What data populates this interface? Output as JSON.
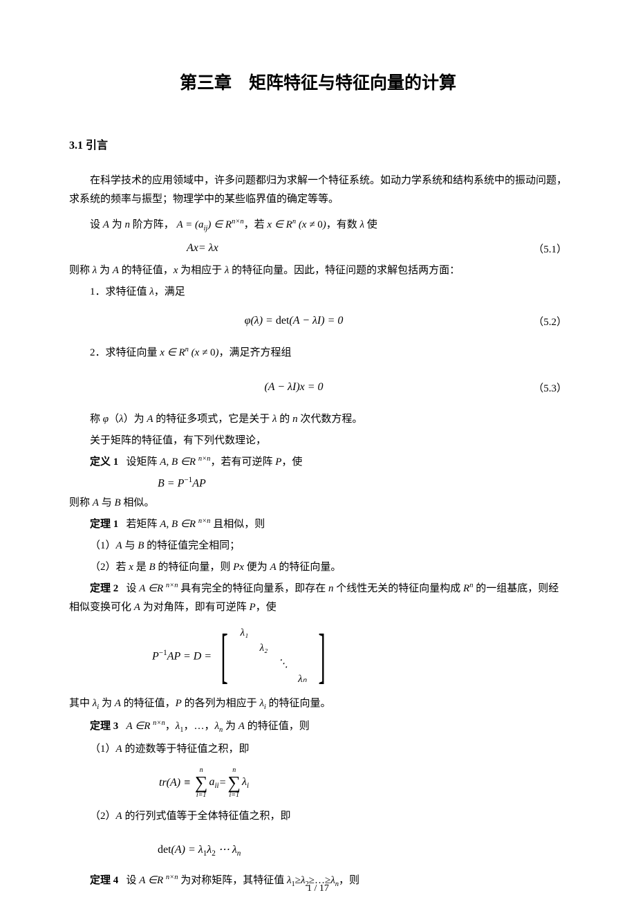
{
  "colors": {
    "text": "#000000",
    "background": "#ffffff"
  },
  "typography": {
    "body_font": "SimSun",
    "math_font": "Times New Roman",
    "body_size_pt": 11,
    "title_size_pt": 19
  },
  "title": "第三章　矩阵特征与特征向量的计算",
  "section": "3.1  引言",
  "p1": "在科学技术的应用领域中，许多问题都归为求解一个特征系统。如动力学系统和结构系统中的振动问题，求系统的频率与振型；物理学中的某些临界值的确定等等。",
  "p2_pre": "设 ",
  "p2_mid": " 为 ",
  "p2_post1": " 阶方阵，",
  "p2_expr": "A = (aᵢⱼ) ∈ Rⁿˣⁿ",
  "p2_post2": "，若 ",
  "p2_expr2": "x ∈ Rⁿ (x ≠ 0)",
  "p2_post3": "，有数 ",
  "p2_post4": " 使",
  "eq51": "Ax = λx",
  "eq51_num": "（5.1）",
  "p3": "则称 λ 为 A 的特征值，x 为相应于 λ 的特征向量。因此，特征问题的求解包括两方面：",
  "p4": "1．求特征值 λ，满足",
  "eq52": "φ(λ) = det(A − λI) = 0",
  "eq52_num": "（5.2）",
  "p5_pre": "2．求特征向量 ",
  "p5_expr": "x ∈ Rⁿ (x ≠ 0)",
  "p5_post": "，满足齐方程组",
  "eq53": "(A − λI)x = 0",
  "eq53_num": "（5.3）",
  "p6": "称 φ（λ）为 A 的特征多项式，它是关于 λ 的 n 次代数方程。",
  "p7": "关于矩阵的特征值，有下列代数理论，",
  "def1_label": "定义 1",
  "def1_body": "   设矩阵 A, B ∈R ⁿˣⁿ，若有可逆阵 P，使",
  "def1_eq": "B = P⁻¹AP",
  "def1_tail": "则称 A 与 B 相似。",
  "th1_label": "定理 1",
  "th1_body": "   若矩阵 A, B ∈R ⁿˣⁿ 且相似，则",
  "th1_item1": "（1）A 与 B 的特征值完全相同；",
  "th1_item2": "（2）若 x 是 B 的特征向量，则 Px 便为 A 的特征向量。",
  "th2_label": "定理 2",
  "th2_body": "   设 A ∈R ⁿˣⁿ 具有完全的特征向量系，即存在 n 个线性无关的特征向量构成 Rⁿ 的一组基底，则经相似变换可化 A 为对角阵，即有可逆阵 P，使",
  "th2_eq_pre": "P⁻¹AP = D =",
  "th2_matrix": {
    "d1": "λ₁",
    "d2": "λ₂",
    "dots": "⋱",
    "dn": "λₙ"
  },
  "th2_tail": "其中 λᵢ 为 A 的特征值，P 的各列为相应于 λᵢ 的特征向量。",
  "th3_label": "定理 3",
  "th3_body": "   A ∈R ⁿˣⁿ，λ₁，…，λₙ 为 A 的特征值，则",
  "th3_item1": "（1）A 的迹数等于特征值之积，即",
  "th3_eq_lhs": "tr(A) ≡",
  "th3_sum_upper": "n",
  "th3_sum_lower": "i=1",
  "th3_sum_body1": "aᵢᵢ",
  "th3_sum_eq": " = ",
  "th3_sum_body2": "λᵢ",
  "th3_item2": "（2）A 的行列式值等于全体特征值之积，即",
  "th3_eq2": "det(A) = λ₁λ₂ ⋯ λₙ",
  "th4_label": "定理 4",
  "th4_body": "   设 A ∈R ⁿˣⁿ 为对称矩阵，其特征值 λ₁≥λ₂≥…≥λₙ，则",
  "footer": "1  /  17",
  "var_A": "A",
  "var_n": "n",
  "var_lambda": "λ"
}
